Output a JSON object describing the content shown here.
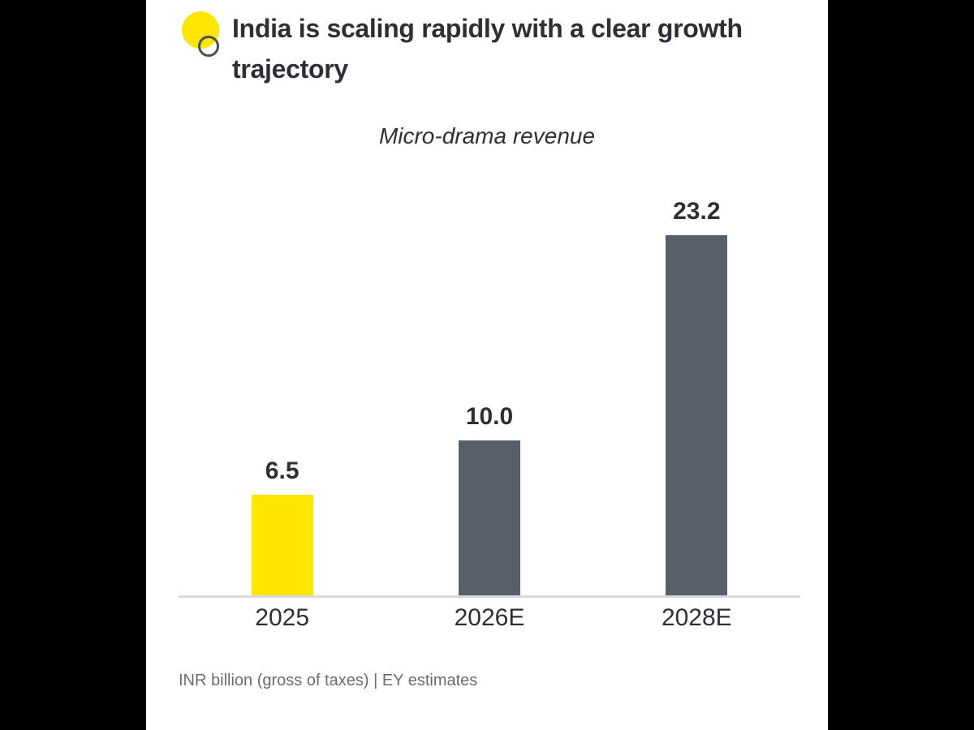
{
  "chart_data": {
    "type": "bar",
    "title": "India is scaling rapidly with a clear growth trajectory",
    "subtitle": "Micro-drama revenue",
    "categories": [
      "2025",
      "2026E",
      "2028E"
    ],
    "values": [
      6.5,
      10.0,
      23.2
    ],
    "value_labels": [
      "6.5",
      "10.0",
      "23.2"
    ],
    "bar_colors": [
      "#FFE600",
      "#57606A",
      "#57606A"
    ],
    "ylim": [
      0,
      23.2
    ],
    "grid": false,
    "legend": false,
    "footnote": "INR billion (gross of taxes) | EY estimates"
  },
  "branding": {
    "accent_yellow": "#FFE600",
    "bar_gray": "#57606A",
    "title_color": "#2E2E38",
    "icon": "ey-yellow-dot-with-ring-icon"
  }
}
